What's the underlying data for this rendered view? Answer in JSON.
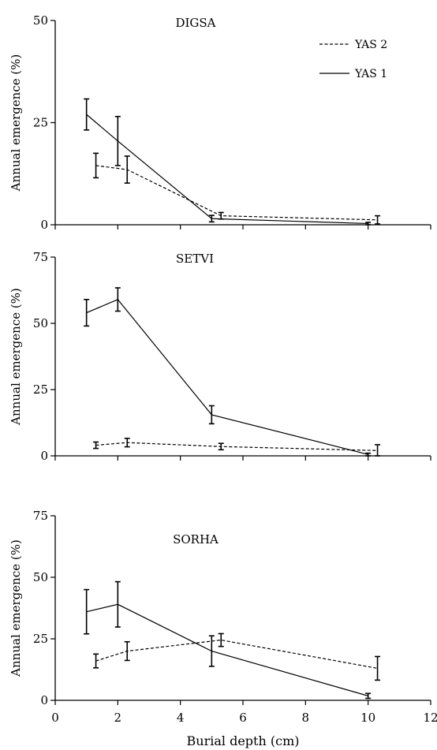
{
  "chart_data": [
    {
      "type": "line",
      "title": "DIGSA",
      "xlabel": "",
      "ylabel": "Annual emergence (%)",
      "xlim": [
        0,
        12
      ],
      "ylim": [
        0,
        50
      ],
      "yticks": [
        "0",
        "25",
        "50"
      ],
      "legend_placement": "top-right",
      "series": [
        {
          "name": "YAS 2",
          "style": "dashed",
          "x": [
            1.3,
            2.3,
            5.3,
            10.3
          ],
          "y": [
            14.5,
            13.5,
            2.2,
            1.2
          ],
          "err": [
            3.0,
            3.3,
            0.8,
            1.0
          ]
        },
        {
          "name": "YAS 1",
          "style": "solid",
          "x": [
            1.0,
            2.0,
            5.0,
            10.0
          ],
          "y": [
            27.0,
            20.5,
            1.5,
            0.3
          ],
          "err": [
            3.8,
            6.0,
            0.8,
            0.3
          ]
        }
      ]
    },
    {
      "type": "line",
      "title": "SETVI",
      "xlabel": "",
      "ylabel": "Annual emergence (%)",
      "xlim": [
        0,
        12
      ],
      "ylim": [
        0,
        75
      ],
      "yticks": [
        "0",
        "25",
        "50",
        "75"
      ],
      "series": [
        {
          "name": "YAS 2",
          "style": "dashed",
          "x": [
            1.3,
            2.3,
            5.3,
            10.3
          ],
          "y": [
            4.0,
            5.0,
            3.5,
            2.0
          ],
          "err": [
            1.2,
            1.6,
            1.2,
            2.2
          ]
        },
        {
          "name": "YAS 1",
          "style": "solid",
          "x": [
            1.0,
            2.0,
            5.0,
            10.0
          ],
          "y": [
            54.0,
            59.0,
            15.5,
            0.5
          ],
          "err": [
            5.0,
            4.4,
            3.4,
            0.5
          ]
        }
      ]
    },
    {
      "type": "line",
      "title": "SORHA",
      "xlabel": "Burial depth (cm)",
      "ylabel": "Annual emergence (%)",
      "xlim": [
        0,
        12
      ],
      "ylim": [
        0,
        75
      ],
      "xticks": [
        "0",
        "2",
        "4",
        "6",
        "8",
        "10",
        "12"
      ],
      "yticks": [
        "0",
        "25",
        "50",
        "75"
      ],
      "series": [
        {
          "name": "YAS 2",
          "style": "dashed",
          "x": [
            1.3,
            2.3,
            5.3,
            10.3
          ],
          "y": [
            16.0,
            20.0,
            24.5,
            13.0
          ],
          "err": [
            2.8,
            3.8,
            2.6,
            4.8
          ]
        },
        {
          "name": "YAS 1",
          "style": "solid",
          "x": [
            1.0,
            2.0,
            5.0,
            10.0
          ],
          "y": [
            36.0,
            39.0,
            20.0,
            1.8
          ],
          "err": [
            9.0,
            9.2,
            6.2,
            1.0
          ]
        }
      ]
    }
  ]
}
